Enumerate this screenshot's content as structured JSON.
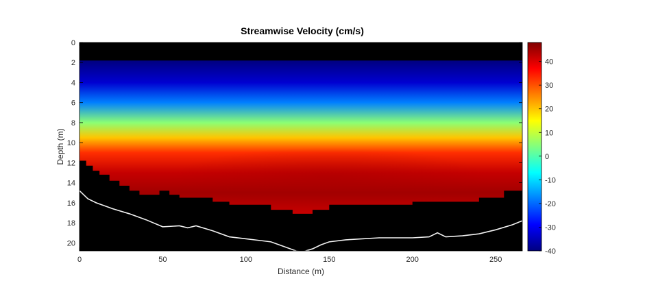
{
  "chart_data": {
    "type": "heatmap",
    "title": "Streamwise Velocity (cm/s)",
    "xlabel": "Distance (m)",
    "ylabel": "Depth (m)",
    "xlim": [
      0,
      266
    ],
    "ylim": [
      0,
      20.8
    ],
    "y_reversed": true,
    "x_ticks": [
      "0",
      "50",
      "100",
      "150",
      "200",
      "250"
    ],
    "x_tick_values": [
      0,
      50,
      100,
      150,
      200,
      250
    ],
    "y_ticks": [
      "0",
      "2",
      "4",
      "6",
      "8",
      "10",
      "12",
      "14",
      "16",
      "18",
      "20"
    ],
    "y_tick_values": [
      0,
      2,
      4,
      6,
      8,
      10,
      12,
      14,
      16,
      18,
      20
    ],
    "colorbar": {
      "range": [
        -40,
        48
      ],
      "ticks": [
        "-40",
        "-30",
        "-20",
        "-10",
        "0",
        "10",
        "20",
        "30",
        "40"
      ],
      "tick_values": [
        -40,
        -30,
        -20,
        -10,
        0,
        10,
        20,
        30,
        40
      ],
      "colormap": "jet"
    },
    "surface_blank_depth": 1.8,
    "velocity_profile": {
      "depth": [
        1.8,
        4,
        6,
        8,
        9.5,
        11,
        13,
        15,
        17
      ],
      "velocity": [
        -40,
        -33,
        -18,
        5,
        20,
        33,
        42,
        45,
        42
      ]
    },
    "bottom_of_data": {
      "distance": [
        0,
        4,
        8,
        12,
        18,
        24,
        30,
        36,
        42,
        48,
        54,
        60,
        66,
        72,
        80,
        90,
        100,
        110,
        115,
        120,
        128,
        135,
        140,
        150,
        160,
        170,
        180,
        190,
        200,
        210,
        220,
        230,
        240,
        250,
        255,
        260,
        266
      ],
      "depth": [
        11.8,
        12.3,
        12.8,
        13.2,
        13.8,
        14.3,
        14.8,
        15.2,
        15.2,
        14.8,
        15.2,
        15.5,
        15.5,
        15.5,
        15.9,
        16.2,
        16.2,
        16.2,
        16.7,
        16.7,
        17.1,
        17.1,
        16.7,
        16.2,
        16.2,
        16.2,
        16.2,
        16.2,
        15.9,
        15.9,
        15.9,
        15.9,
        15.5,
        15.5,
        14.8,
        14.8,
        14.2
      ]
    },
    "riverbed_line": {
      "distance": [
        0,
        5,
        10,
        20,
        30,
        40,
        50,
        60,
        65,
        70,
        80,
        90,
        100,
        110,
        115,
        120,
        125,
        130,
        134,
        140,
        145,
        150,
        160,
        170,
        180,
        190,
        200,
        210,
        215,
        220,
        230,
        240,
        250,
        260,
        266
      ],
      "depth": [
        14.8,
        15.6,
        16.0,
        16.6,
        17.1,
        17.7,
        18.4,
        18.3,
        18.5,
        18.3,
        18.8,
        19.4,
        19.6,
        19.8,
        19.9,
        20.2,
        20.5,
        20.8,
        20.9,
        20.6,
        20.2,
        19.9,
        19.7,
        19.6,
        19.5,
        19.5,
        19.5,
        19.4,
        19.0,
        19.4,
        19.3,
        19.1,
        18.7,
        18.2,
        17.8
      ]
    }
  }
}
